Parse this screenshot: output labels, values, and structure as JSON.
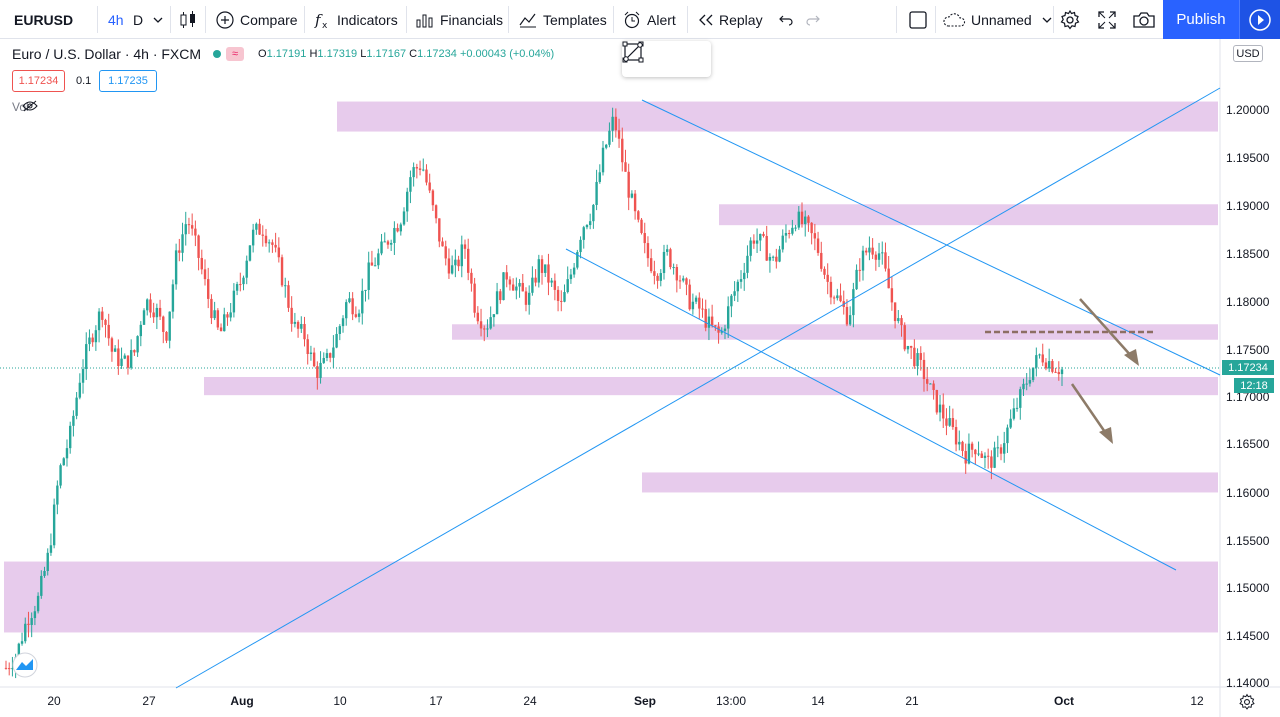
{
  "toolbar": {
    "symbol": "EURUSD",
    "interval": "4h",
    "interval_alt": "D",
    "compare_label": "Compare",
    "indicators_label": "Indicators",
    "financials_label": "Financials",
    "templates_label": "Templates",
    "alert_label": "Alert",
    "replay_label": "Replay",
    "layout_name": "Unnamed",
    "publish_label": "Publish"
  },
  "legend": {
    "title": "Euro / U.S. Dollar · 4h · FXCM",
    "open_key": "O",
    "open": "1.17191",
    "high_key": "H",
    "high": "1.17319",
    "low_key": "L",
    "low": "1.17167",
    "close_key": "C",
    "close": "1.17234",
    "change": "+0.00043 (+0.04%)",
    "sell_price": "1.17234",
    "spread": "0.1",
    "buy_price": "1.17235",
    "volume_label": "Vol"
  },
  "price_scale": {
    "currency": "USD",
    "labels": [
      "1.20000",
      "1.19500",
      "1.19000",
      "1.18500",
      "1.18000",
      "1.17500",
      "1.17000",
      "1.16500",
      "1.16000",
      "1.15500",
      "1.15000",
      "1.14500",
      "1.14000"
    ],
    "current_price": "1.17234",
    "countdown": "12:18"
  },
  "time_scale": {
    "labels": [
      "20",
      "27",
      "Aug",
      "10",
      "17",
      "24",
      "Sep",
      "13:00",
      "14",
      "21",
      "Oct",
      "12"
    ]
  },
  "colors": {
    "up": "#26a69a",
    "down": "#ef5350",
    "zone": "#e1bee7",
    "trendline": "#2196f3",
    "arrow": "#8d7b68",
    "accent": "#2962ff"
  },
  "chart_data": {
    "type": "candlestick",
    "symbol": "EURUSD",
    "ylim": [
      1.1385,
      1.2045
    ],
    "zones": [
      {
        "from": 1.1985,
        "to": 1.2018
      },
      {
        "from": 1.1882,
        "to": 1.1905
      },
      {
        "from": 1.1756,
        "to": 1.1773
      },
      {
        "from": 1.1695,
        "to": 1.1715
      },
      {
        "from": 1.1588,
        "to": 1.161
      },
      {
        "from": 1.1434,
        "to": 1.1512
      }
    ],
    "resistance_level": 1.1761,
    "close_path": [
      1.1395,
      1.141,
      1.145,
      1.147,
      1.152,
      1.161,
      1.165,
      1.172,
      1.176,
      1.179,
      1.174,
      1.173,
      1.174,
      1.18,
      1.179,
      1.176,
      1.185,
      1.189,
      1.185,
      1.18,
      1.176,
      1.179,
      1.182,
      1.187,
      1.188,
      1.186,
      1.182,
      1.177,
      1.176,
      1.172,
      1.173,
      1.176,
      1.18,
      1.179,
      1.183,
      1.185,
      1.187,
      1.189,
      1.194,
      1.195,
      1.19,
      1.185,
      1.183,
      1.186,
      1.179,
      1.177,
      1.18,
      1.183,
      1.181,
      1.18,
      1.184,
      1.182,
      1.179,
      1.183,
      1.188,
      1.19,
      1.196,
      1.2,
      1.194,
      1.189,
      1.185,
      1.183,
      1.185,
      1.183,
      1.18,
      1.179,
      1.177,
      1.176,
      1.18,
      1.183,
      1.187,
      1.186,
      1.184,
      1.187,
      1.189,
      1.188,
      1.186,
      1.182,
      1.18,
      1.178,
      1.184,
      1.186,
      1.185,
      1.18,
      1.176,
      1.174,
      1.172,
      1.169,
      1.167,
      1.165,
      1.163,
      1.164,
      1.162,
      1.163,
      1.166,
      1.169,
      1.172,
      1.174,
      1.173,
      1.1723
    ]
  }
}
